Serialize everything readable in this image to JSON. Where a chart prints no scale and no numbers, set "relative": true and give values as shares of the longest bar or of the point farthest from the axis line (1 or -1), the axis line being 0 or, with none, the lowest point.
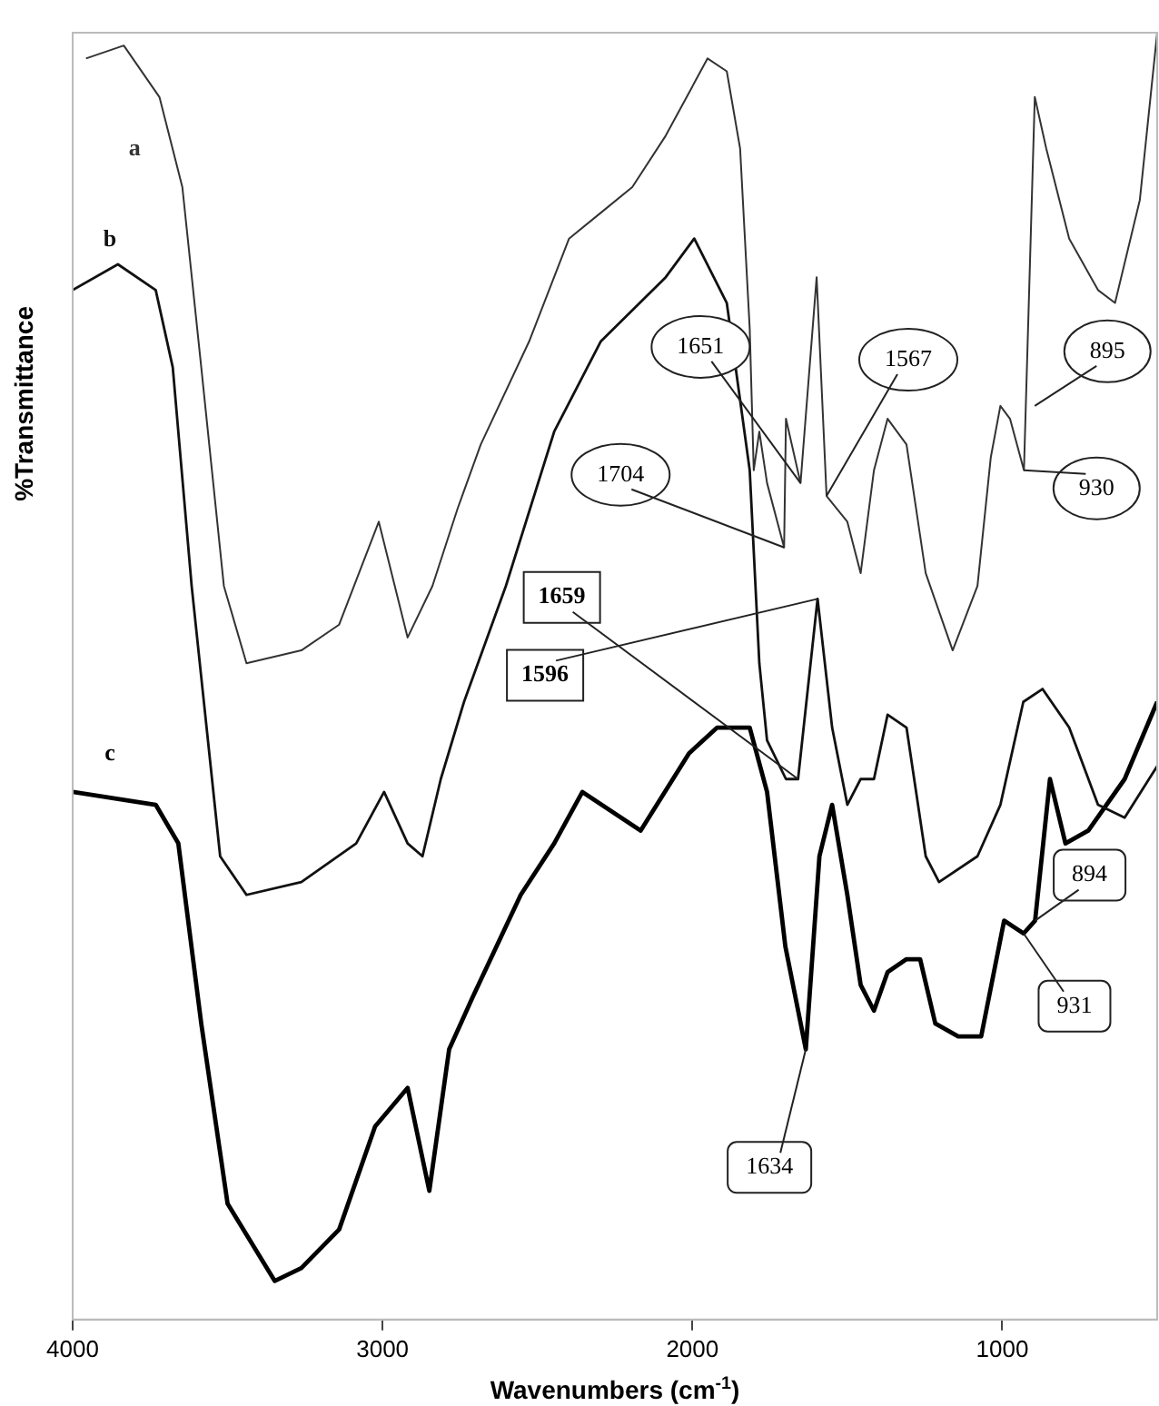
{
  "chart_data": {
    "type": "line",
    "xlabel": "Wavenumbers (cm$^{-1}$)",
    "ylabel": "%Transmittance",
    "relative": true,
    "xlim": [
      4000,
      500
    ],
    "xticks": [
      4000,
      3000,
      2000,
      1000
    ],
    "grid": false,
    "legend": false,
    "marker": "none",
    "line_style": "solid",
    "series": [
      {
        "name": "a",
        "color": "#333333",
        "x": [
          3957,
          3835,
          3720,
          3646,
          3585,
          3512,
          3439,
          3262,
          3140,
          3012,
          2919,
          2839,
          2758,
          2683,
          2527,
          2398,
          2296,
          2194,
          2086,
          1951,
          1889,
          1846,
          1815,
          1802,
          1784,
          1759,
          1704,
          1698,
          1651,
          1599,
          1567,
          1500,
          1457,
          1414,
          1370,
          1309,
          1247,
          1160,
          1080,
          1037,
          1006,
          975,
          930,
          895,
          858,
          784,
          691,
          636,
          556,
          500
        ],
        "values": [
          0.98,
          0.99,
          0.95,
          0.88,
          0.74,
          0.57,
          0.51,
          0.52,
          0.54,
          0.62,
          0.53,
          0.57,
          0.63,
          0.68,
          0.76,
          0.84,
          0.86,
          0.88,
          0.92,
          0.98,
          0.97,
          0.91,
          0.77,
          0.66,
          0.69,
          0.65,
          0.6,
          0.7,
          0.65,
          0.81,
          0.64,
          0.62,
          0.58,
          0.66,
          0.7,
          0.68,
          0.58,
          0.52,
          0.57,
          0.67,
          0.71,
          0.7,
          0.66,
          0.95,
          0.91,
          0.84,
          0.8,
          0.79,
          0.87,
          1.0
        ]
      },
      {
        "name": "b",
        "color": "#111111",
        "x": [
          4000,
          3854,
          3732,
          3677,
          3616,
          3524,
          3439,
          3262,
          3085,
          2995,
          2919,
          2871,
          2812,
          2737,
          2602,
          2446,
          2296,
          2086,
          1994,
          1889,
          1815,
          1784,
          1759,
          1698,
          1659,
          1596,
          1549,
          1500,
          1457,
          1414,
          1370,
          1309,
          1247,
          1204,
          1080,
          1006,
          932,
          870,
          784,
          691,
          605,
          500
        ],
        "values": [
          0.8,
          0.82,
          0.8,
          0.74,
          0.57,
          0.36,
          0.33,
          0.34,
          0.37,
          0.41,
          0.37,
          0.36,
          0.42,
          0.48,
          0.57,
          0.69,
          0.76,
          0.81,
          0.84,
          0.79,
          0.66,
          0.51,
          0.45,
          0.42,
          0.42,
          0.56,
          0.46,
          0.4,
          0.42,
          0.42,
          0.47,
          0.46,
          0.36,
          0.34,
          0.36,
          0.4,
          0.48,
          0.49,
          0.46,
          0.4,
          0.39,
          0.43
        ]
      },
      {
        "name": "c",
        "color": "#000000",
        "x": [
          4000,
          3732,
          3659,
          3585,
          3500,
          3348,
          3262,
          3140,
          3024,
          2919,
          2849,
          2785,
          2710,
          2554,
          2446,
          2355,
          2167,
          2011,
          1920,
          1815,
          1759,
          1700,
          1634,
          1590,
          1549,
          1500,
          1457,
          1414,
          1370,
          1309,
          1265,
          1216,
          1142,
          1068,
          994,
          931,
          894,
          846,
          796,
          722,
          605,
          500
        ],
        "values": [
          0.41,
          0.4,
          0.37,
          0.23,
          0.09,
          0.03,
          0.04,
          0.07,
          0.15,
          0.18,
          0.1,
          0.21,
          0.25,
          0.33,
          0.37,
          0.41,
          0.38,
          0.44,
          0.46,
          0.46,
          0.41,
          0.29,
          0.21,
          0.36,
          0.4,
          0.33,
          0.26,
          0.24,
          0.27,
          0.28,
          0.28,
          0.23,
          0.22,
          0.22,
          0.31,
          0.3,
          0.31,
          0.42,
          0.37,
          0.38,
          0.42,
          0.48
        ]
      }
    ],
    "annotations": [
      {
        "text": "1651",
        "x": 1651,
        "y": 0.65
      },
      {
        "text": "1567",
        "x": 1567,
        "y": 0.64
      },
      {
        "text": "1704",
        "x": 1704,
        "y": 0.6
      },
      {
        "text": "895",
        "x": 895,
        "y": 0.71
      },
      {
        "text": "930",
        "x": 930,
        "y": 0.66
      },
      {
        "text": "1659",
        "x": 1659,
        "y": 0.42
      },
      {
        "text": "1596",
        "x": 1596,
        "y": 0.56
      },
      {
        "text": "1634",
        "x": 1634,
        "y": 0.21
      },
      {
        "text": "894",
        "x": 894,
        "y": 0.31
      },
      {
        "text": "931",
        "x": 931,
        "y": 0.3
      }
    ]
  }
}
